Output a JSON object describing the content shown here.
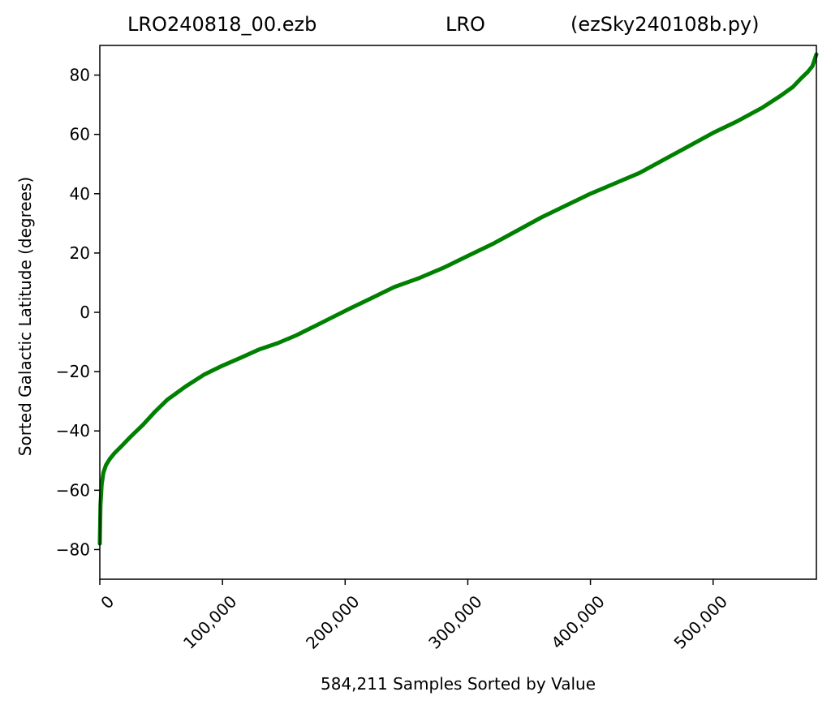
{
  "title": {
    "left": "LRO240818_00.ezb",
    "middle": "LRO",
    "right": "(ezSky240108b.py)"
  },
  "chart_data": {
    "type": "line",
    "xlabel": "584,211 Samples Sorted by Value",
    "ylabel": "Sorted Galactic Latitude (degrees)",
    "xlim": [
      0,
      584211
    ],
    "ylim": [
      -90,
      90
    ],
    "x_ticks": [
      0,
      100000,
      200000,
      300000,
      400000,
      500000
    ],
    "x_tick_labels": [
      "0",
      "100,000",
      "200,000",
      "300,000",
      "400,000",
      "500,000"
    ],
    "y_ticks": [
      -80,
      -60,
      -40,
      -20,
      0,
      20,
      40,
      60,
      80
    ],
    "y_tick_labels": [
      "−80",
      "−60",
      "−40",
      "−20",
      "0",
      "20",
      "40",
      "60",
      "80"
    ],
    "grid": false,
    "series": [
      {
        "color": "#008000",
        "x": [
          0,
          500,
          1500,
          3000,
          5000,
          8000,
          12000,
          18000,
          25000,
          35000,
          45000,
          55000,
          70000,
          85000,
          100000,
          115000,
          130000,
          145000,
          160000,
          175000,
          190000,
          205000,
          220000,
          240000,
          260000,
          280000,
          300000,
          320000,
          340000,
          360000,
          380000,
          400000,
          420000,
          440000,
          460000,
          480000,
          500000,
          520000,
          540000,
          555000,
          565000,
          572000,
          577000,
          581000,
          584211
        ],
        "y": [
          -78,
          -65,
          -58,
          -54,
          -51.5,
          -49.5,
          -47.5,
          -45,
          -42,
          -38,
          -33.5,
          -29.5,
          -25,
          -21,
          -18,
          -15.3,
          -12.5,
          -10.4,
          -7.8,
          -4.7,
          -1.6,
          1.5,
          4.5,
          8.5,
          11.5,
          15,
          19,
          23,
          27.5,
          32,
          36,
          40,
          43.5,
          47,
          51.5,
          56,
          60.5,
          64.5,
          69,
          73,
          76,
          79,
          81,
          83,
          87
        ]
      }
    ]
  }
}
